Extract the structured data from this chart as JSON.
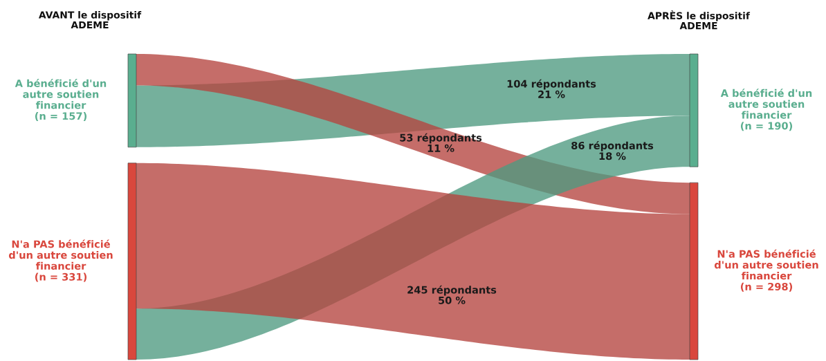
{
  "chart_data": {
    "type": "other",
    "annotations": [
      "AVANT le dispositif\nADEME",
      "APRÈS le dispositif\nADEME"
    ],
    "categories": [
      "A bénéficié d'un\nautre soutien\nfinancier\n(n = 157)",
      "N'a PAS bénéficié\nd'un autre soutien\nfinancier\n(n = 331)"
    ],
    "y2_categories": [
      "A bénéficié d'un\nautre soutien\nfinancier\n(n = 190)",
      "N'a PAS bénéficié\nd'un autre soutien\nfinancier\n(n = 298)"
    ],
    "colors": [
      "#5aae8f",
      "#d9473d"
    ],
    "series": [
      {
        "color": "#4e9a80",
        "values": [
          104,
          86
        ],
        "value_labels": [
          "104 répondants\n21 %",
          "86 répondants\n18 %"
        ]
      },
      {
        "color": "#b5443f",
        "values": [
          53,
          245
        ],
        "value_labels": [
          "53 répondants\n11 %",
          "245 répondants\n50 %"
        ]
      }
    ]
  }
}
